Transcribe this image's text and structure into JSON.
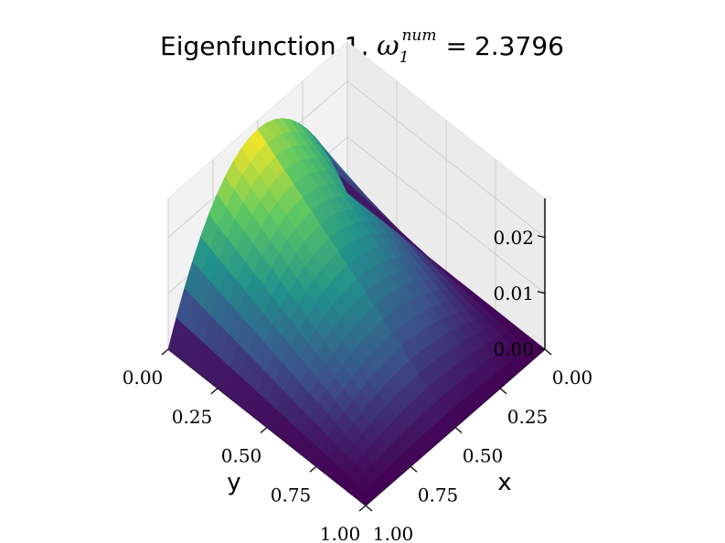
{
  "chart_data": {
    "type": "surface3d",
    "title": {
      "prefix": "Eigenfunction 1, ",
      "symbol": "ω",
      "subscript": "1",
      "superscript": "num",
      "equals": "=",
      "value": "2.3796"
    },
    "xlabel": "x",
    "ylabel": "y",
    "zlabel": "",
    "xlim": [
      0,
      1
    ],
    "ylim": [
      0,
      1
    ],
    "zlim": [
      0,
      0.027
    ],
    "x_ticks": [
      "0.00",
      "0.25",
      "0.50",
      "0.75",
      "1.00"
    ],
    "y_ticks": [
      "0.00",
      "0.25",
      "0.50",
      "0.75",
      "1.00"
    ],
    "z_ticks": [
      "0.00",
      "0.01",
      "0.02"
    ],
    "colormap": "viridis",
    "colormap_stops": [
      "#440154",
      "#3b528b",
      "#21918c",
      "#5ec962",
      "#fde725"
    ],
    "peak_value": 0.0254,
    "grid": true,
    "view": {
      "elevation_deg": 40,
      "azimuth_deg": 45
    },
    "function": "peak * 4 * x * (1 - x) * (1 - y)"
  }
}
